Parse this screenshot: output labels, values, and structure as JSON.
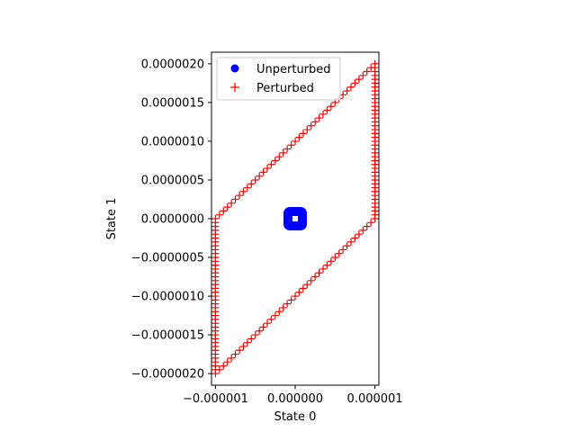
{
  "chart_data": {
    "type": "scatter",
    "xlabel": "State 0",
    "ylabel": "State 1",
    "xlim": [
      -1.05e-06,
      1.05e-06
    ],
    "ylim": [
      -2.15e-06,
      2.15e-06
    ],
    "x_ticks": [
      -1e-06,
      0.0,
      1e-06
    ],
    "x_tick_labels": [
      "−0.000001",
      "0.000000",
      "0.000001"
    ],
    "y_ticks": [
      -2e-06,
      -1.5e-06,
      -1e-06,
      -5e-07,
      0.0,
      5e-07,
      1e-06,
      1.5e-06,
      2e-06
    ],
    "y_tick_labels": [
      "−0.0000020",
      "−0.0000015",
      "−0.0000010",
      "−0.0000005",
      "0.0000000",
      "0.0000005",
      "0.0000010",
      "0.0000015",
      "0.0000020"
    ],
    "grid": false,
    "legend": {
      "position": "upper-left",
      "entries": [
        {
          "label": "Unperturbed",
          "marker": "o",
          "color": "#0000ff"
        },
        {
          "label": "Perturbed",
          "marker": "+",
          "color": "#ff0000"
        }
      ]
    },
    "series": [
      {
        "name": "Unperturbed",
        "marker": "o",
        "color": "#0000ff",
        "points": [
          [
            0,
            0
          ]
        ]
      },
      {
        "name": "Perturbed",
        "marker": "+",
        "color": "#ff0000",
        "boundary_vertices": [
          [
            -1e-06,
            -2e-06
          ],
          [
            -1e-06,
            0.0
          ],
          [
            1e-06,
            2e-06
          ],
          [
            1e-06,
            0.0
          ],
          [
            -1e-06,
            -2e-06
          ]
        ],
        "points_per_edge": 40
      }
    ]
  }
}
